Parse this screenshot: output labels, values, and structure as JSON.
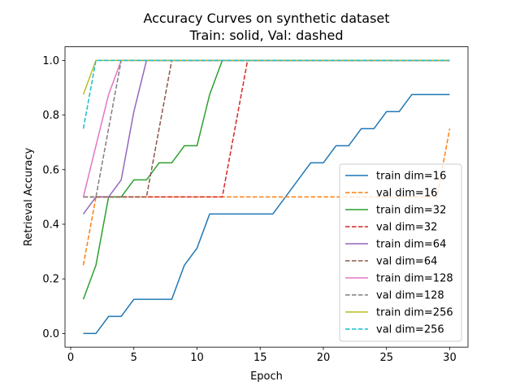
{
  "chart_data": {
    "type": "line",
    "title_line1": "Accuracy Curves on synthetic dataset",
    "title_line2": "Train: solid, Val: dashed",
    "xlabel": "Epoch",
    "ylabel": "Retrieval Accuracy",
    "xlim": [
      -0.45,
      31.45
    ],
    "ylim": [
      -0.05,
      1.05
    ],
    "xticks": [
      0,
      5,
      10,
      15,
      20,
      25,
      30
    ],
    "yticks": [
      0.0,
      0.2,
      0.4,
      0.6,
      0.8,
      1.0
    ],
    "xtick_labels": [
      "0",
      "5",
      "10",
      "15",
      "20",
      "25",
      "30"
    ],
    "ytick_labels": [
      "0.0",
      "0.2",
      "0.4",
      "0.6",
      "0.8",
      "1.0"
    ],
    "legend_position": "lower right",
    "x": [
      1,
      2,
      3,
      4,
      5,
      6,
      7,
      8,
      9,
      10,
      11,
      12,
      13,
      14,
      15,
      16,
      17,
      18,
      19,
      20,
      21,
      22,
      23,
      24,
      25,
      26,
      27,
      28,
      29,
      30
    ],
    "series": [
      {
        "name": "train dim=16",
        "color": "#1f77b4",
        "style": "solid",
        "values": [
          0,
          0,
          0.0625,
          0.0625,
          0.125,
          0.125,
          0.125,
          0.125,
          0.25,
          0.3125,
          0.4375,
          0.4375,
          0.4375,
          0.4375,
          0.4375,
          0.4375,
          0.5,
          0.5625,
          0.625,
          0.625,
          0.6875,
          0.6875,
          0.75,
          0.75,
          0.8125,
          0.8125,
          0.875,
          0.875,
          0.875,
          0.875
        ]
      },
      {
        "name": "val dim=16",
        "color": "#ff7f0e",
        "style": "dashed",
        "values": [
          0.25,
          0.5,
          0.5,
          0.5,
          0.5,
          0.5,
          0.5,
          0.5,
          0.5,
          0.5,
          0.5,
          0.5,
          0.5,
          0.5,
          0.5,
          0.5,
          0.5,
          0.5,
          0.5,
          0.5,
          0.5,
          0.5,
          0.5,
          0.5,
          0.5,
          0.5,
          0.5,
          0.5,
          0.5,
          0.75
        ]
      },
      {
        "name": "train dim=32",
        "color": "#2ca02c",
        "style": "solid",
        "values": [
          0.125,
          0.25,
          0.5,
          0.5,
          0.5625,
          0.5625,
          0.625,
          0.625,
          0.6875,
          0.6875,
          0.875,
          1,
          1,
          1,
          1,
          1,
          1,
          1,
          1,
          1,
          1,
          1,
          1,
          1,
          1,
          1,
          1,
          1,
          1,
          1
        ]
      },
      {
        "name": "val dim=32",
        "color": "#d62728",
        "style": "dashed",
        "values": [
          0.5,
          0.5,
          0.5,
          0.5,
          0.5,
          0.5,
          0.5,
          0.5,
          0.5,
          0.5,
          0.5,
          0.5,
          0.75,
          1,
          1,
          1,
          1,
          1,
          1,
          1,
          1,
          1,
          1,
          1,
          1,
          1,
          1,
          1,
          1,
          1
        ]
      },
      {
        "name": "train dim=64",
        "color": "#9467bd",
        "style": "solid",
        "values": [
          0.4375,
          0.5,
          0.5,
          0.5625,
          0.8125,
          1,
          1,
          1,
          1,
          1,
          1,
          1,
          1,
          1,
          1,
          1,
          1,
          1,
          1,
          1,
          1,
          1,
          1,
          1,
          1,
          1,
          1,
          1,
          1,
          1
        ]
      },
      {
        "name": "val dim=64",
        "color": "#8c564b",
        "style": "dashed",
        "values": [
          0.5,
          0.5,
          0.5,
          0.5,
          0.5,
          0.5,
          0.75,
          1,
          1,
          1,
          1,
          1,
          1,
          1,
          1,
          1,
          1,
          1,
          1,
          1,
          1,
          1,
          1,
          1,
          1,
          1,
          1,
          1,
          1,
          1
        ]
      },
      {
        "name": "train dim=128",
        "color": "#e377c2",
        "style": "solid",
        "values": [
          0.5,
          0.6875,
          0.875,
          1,
          1,
          1,
          1,
          1,
          1,
          1,
          1,
          1,
          1,
          1,
          1,
          1,
          1,
          1,
          1,
          1,
          1,
          1,
          1,
          1,
          1,
          1,
          1,
          1,
          1,
          1
        ]
      },
      {
        "name": "val dim=128",
        "color": "#7f7f7f",
        "style": "dashed",
        "values": [
          0.5,
          0.5,
          0.75,
          1,
          1,
          1,
          1,
          1,
          1,
          1,
          1,
          1,
          1,
          1,
          1,
          1,
          1,
          1,
          1,
          1,
          1,
          1,
          1,
          1,
          1,
          1,
          1,
          1,
          1,
          1
        ]
      },
      {
        "name": "train dim=256",
        "color": "#bcbd22",
        "style": "solid",
        "values": [
          0.875,
          1,
          1,
          1,
          1,
          1,
          1,
          1,
          1,
          1,
          1,
          1,
          1,
          1,
          1,
          1,
          1,
          1,
          1,
          1,
          1,
          1,
          1,
          1,
          1,
          1,
          1,
          1,
          1,
          1
        ]
      },
      {
        "name": "val dim=256",
        "color": "#17becf",
        "style": "dashed",
        "values": [
          0.75,
          1,
          1,
          1,
          1,
          1,
          1,
          1,
          1,
          1,
          1,
          1,
          1,
          1,
          1,
          1,
          1,
          1,
          1,
          1,
          1,
          1,
          1,
          1,
          1,
          1,
          1,
          1,
          1,
          1
        ]
      }
    ]
  }
}
